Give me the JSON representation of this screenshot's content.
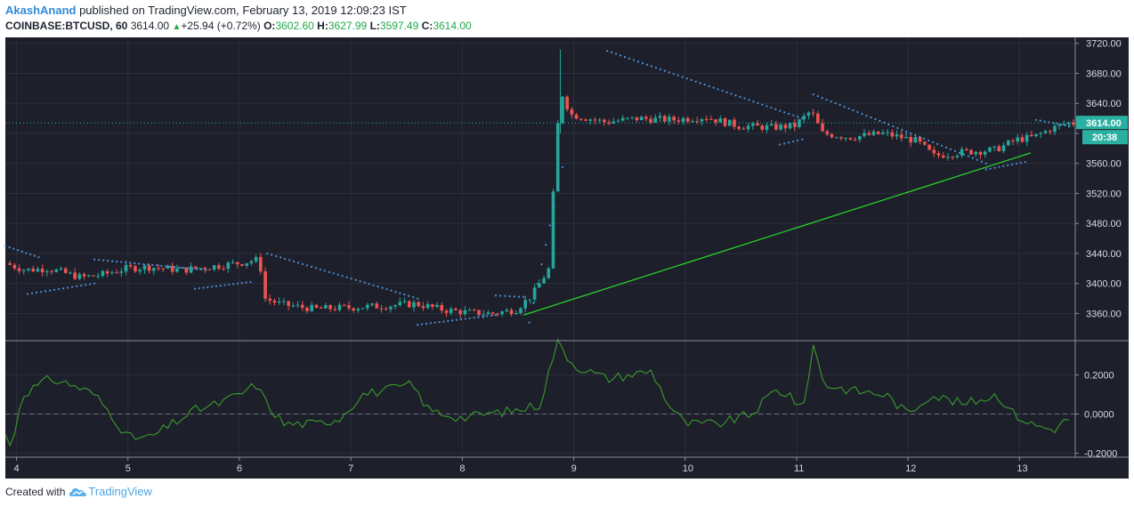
{
  "header": {
    "author": "AkashAnand",
    "published": " published on TradingView.com, February 13, 2019 12:09:23 IST",
    "symbol": "COINBASE:BTCUSD, 60",
    "last": "3614.00",
    "change": "+25.94 (+0.72%)",
    "o_label": "O:",
    "o_val": "3602.60",
    "h_label": "H:",
    "h_val": "3627.99",
    "l_label": "L:",
    "l_val": "3597.49",
    "c_label": "C:",
    "c_val": "3614.00"
  },
  "footer": {
    "created_with": "Created with",
    "brand": "TradingView"
  },
  "colors": {
    "background": "#1d202b",
    "up": "#26a69a",
    "down": "#ef5350",
    "sar": "#4f8fd8",
    "trendline": "#2bd32b",
    "oscillator": "#3a9a2a",
    "price_tag": "#2ab0a0"
  },
  "chart_data": [
    {
      "type": "candlestick",
      "title": "COINBASE:BTCUSD, 60",
      "x_tick_labels": [
        "4",
        "5",
        "6",
        "7",
        "8",
        "9",
        "10",
        "11",
        "12",
        "13"
      ],
      "y_ticks": [
        3360,
        3400,
        3440,
        3480,
        3520,
        3560,
        3600,
        3640,
        3680,
        3720
      ],
      "y_tick_labels": [
        "3360.00",
        "3400.00",
        "3440.00",
        "3480.00",
        "3520.00",
        "3560.00",
        "3600.00",
        "3640.00",
        "3680.00",
        "3720.00"
      ],
      "ylim": [
        3325,
        3728
      ],
      "last_price_label": "3614.00",
      "countdown_label": "20:38",
      "price_profile": [
        [
          3.9,
          3428
        ],
        [
          4.1,
          3418
        ],
        [
          4.3,
          3420
        ],
        [
          4.6,
          3408
        ],
        [
          4.8,
          3412
        ],
        [
          5.0,
          3420
        ],
        [
          5.2,
          3422
        ],
        [
          5.5,
          3418
        ],
        [
          5.8,
          3423
        ],
        [
          6.05,
          3428
        ],
        [
          6.2,
          3432
        ],
        [
          6.25,
          3380
        ],
        [
          6.4,
          3372
        ],
        [
          6.7,
          3366
        ],
        [
          7.0,
          3368
        ],
        [
          7.3,
          3370
        ],
        [
          7.6,
          3373
        ],
        [
          7.85,
          3365
        ],
        [
          8.1,
          3361
        ],
        [
          8.3,
          3360
        ],
        [
          8.5,
          3365
        ],
        [
          8.65,
          3385
        ],
        [
          8.8,
          3420
        ],
        [
          8.85,
          3560
        ],
        [
          8.9,
          3655
        ],
        [
          9.0,
          3625
        ],
        [
          9.3,
          3615
        ],
        [
          9.6,
          3620
        ],
        [
          9.9,
          3618
        ],
        [
          10.2,
          3622
        ],
        [
          10.5,
          3610
        ],
        [
          10.8,
          3608
        ],
        [
          11.0,
          3610
        ],
        [
          11.15,
          3630
        ],
        [
          11.25,
          3600
        ],
        [
          11.5,
          3595
        ],
        [
          11.8,
          3600
        ],
        [
          12.1,
          3590
        ],
        [
          12.25,
          3570
        ],
        [
          12.5,
          3575
        ],
        [
          12.8,
          3578
        ],
        [
          13.0,
          3592
        ],
        [
          13.15,
          3595
        ],
        [
          13.3,
          3606
        ],
        [
          13.45,
          3614
        ]
      ],
      "parabolic_sar_segments": [
        {
          "from": [
            3.9,
            3450
          ],
          "to": [
            4.2,
            3435
          ]
        },
        {
          "from": [
            4.1,
            3386
          ],
          "to": [
            4.7,
            3400
          ]
        },
        {
          "from": [
            4.7,
            3432
          ],
          "to": [
            5.7,
            3418
          ]
        },
        {
          "from": [
            5.6,
            3393
          ],
          "to": [
            6.1,
            3402
          ]
        },
        {
          "from": [
            6.25,
            3440
          ],
          "to": [
            7.6,
            3380
          ]
        },
        {
          "from": [
            7.6,
            3345
          ],
          "to": [
            8.3,
            3358
          ]
        },
        {
          "from": [
            8.3,
            3384
          ],
          "to": [
            8.55,
            3382
          ]
        },
        {
          "from": [
            8.6,
            3348
          ],
          "to": [
            8.9,
            3555
          ]
        },
        {
          "from": [
            9.3,
            3710
          ],
          "to": [
            11.05,
            3620
          ]
        },
        {
          "from": [
            10.85,
            3585
          ],
          "to": [
            11.05,
            3592
          ]
        },
        {
          "from": [
            11.15,
            3652
          ],
          "to": [
            12.7,
            3560
          ]
        },
        {
          "from": [
            12.7,
            3552
          ],
          "to": [
            13.05,
            3562
          ]
        },
        {
          "from": [
            13.15,
            3618
          ],
          "to": [
            13.45,
            3610
          ]
        }
      ],
      "trendline": {
        "from": [
          8.55,
          3358
        ],
        "to": [
          13.1,
          3574
        ]
      }
    },
    {
      "type": "line",
      "y_ticks": [
        -0.2,
        0.0,
        0.2
      ],
      "y_tick_labels": [
        "-0.2000",
        "0.0000",
        "0.2000"
      ],
      "ylim": [
        -0.22,
        0.37
      ],
      "zero_line": 0.0,
      "series": [
        {
          "profile": [
            [
              3.9,
              -0.1
            ],
            [
              3.95,
              -0.18
            ],
            [
              4.05,
              0.1
            ],
            [
              4.3,
              0.18
            ],
            [
              4.5,
              0.15
            ],
            [
              4.7,
              0.1
            ],
            [
              4.85,
              0.0
            ],
            [
              5.0,
              -0.12
            ],
            [
              5.2,
              -0.12
            ],
            [
              5.4,
              -0.05
            ],
            [
              5.6,
              0.02
            ],
            [
              5.8,
              0.05
            ],
            [
              6.0,
              0.1
            ],
            [
              6.15,
              0.15
            ],
            [
              6.25,
              0.05
            ],
            [
              6.4,
              -0.05
            ],
            [
              6.7,
              -0.05
            ],
            [
              6.9,
              -0.02
            ],
            [
              7.1,
              0.1
            ],
            [
              7.3,
              0.12
            ],
            [
              7.55,
              0.15
            ],
            [
              7.7,
              0.02
            ],
            [
              7.85,
              0.0
            ],
            [
              8.0,
              -0.02
            ],
            [
              8.2,
              0.0
            ],
            [
              8.5,
              0.02
            ],
            [
              8.7,
              0.05
            ],
            [
              8.85,
              0.37
            ],
            [
              9.0,
              0.25
            ],
            [
              9.3,
              0.18
            ],
            [
              9.5,
              0.2
            ],
            [
              9.7,
              0.22
            ],
            [
              9.85,
              0.05
            ],
            [
              10.0,
              -0.05
            ],
            [
              10.3,
              -0.05
            ],
            [
              10.6,
              0.0
            ],
            [
              10.8,
              0.12
            ],
            [
              10.95,
              0.1
            ],
            [
              11.05,
              0.0
            ],
            [
              11.15,
              0.35
            ],
            [
              11.25,
              0.15
            ],
            [
              11.5,
              0.12
            ],
            [
              11.8,
              0.1
            ],
            [
              12.0,
              0.0
            ],
            [
              12.2,
              0.1
            ],
            [
              12.5,
              0.05
            ],
            [
              12.8,
              0.1
            ],
            [
              12.95,
              0.0
            ],
            [
              13.1,
              -0.05
            ],
            [
              13.3,
              -0.08
            ],
            [
              13.45,
              -0.02
            ]
          ]
        }
      ]
    }
  ]
}
